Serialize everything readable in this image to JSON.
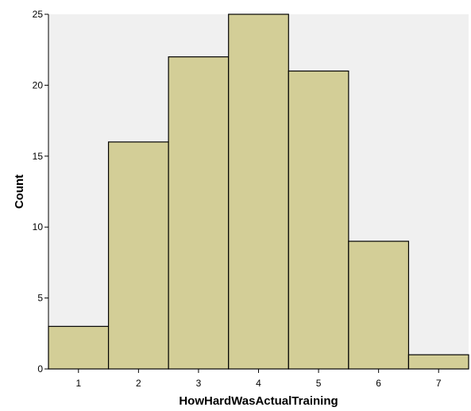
{
  "chart_data": {
    "type": "bar",
    "title": "",
    "xlabel": "HowHardWasActualTraining",
    "ylabel": "Count",
    "categories": [
      "1",
      "2",
      "3",
      "4",
      "5",
      "6",
      "7"
    ],
    "values": [
      3,
      16,
      22,
      25,
      21,
      9,
      1
    ],
    "ylim": [
      0,
      25
    ],
    "y_ticks": [
      0,
      5,
      10,
      15,
      20,
      25
    ],
    "grid": false,
    "legend": "none",
    "colors": {
      "plot_background": "#f0f0f0",
      "bar_fill": "#d3ce97",
      "bar_stroke": "#000000",
      "axis": "#000000"
    }
  }
}
